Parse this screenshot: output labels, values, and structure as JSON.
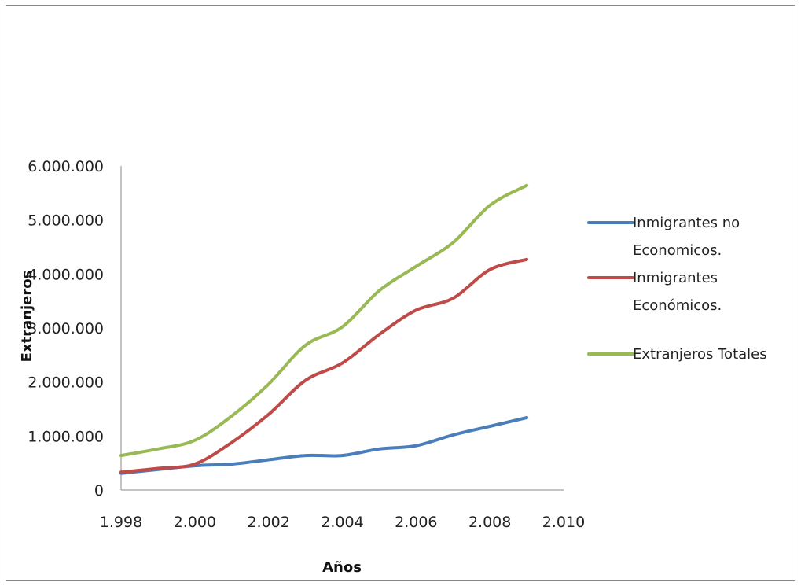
{
  "chart_data": {
    "type": "line",
    "xlabel": "Años",
    "ylabel": "Extranjeros",
    "xlim": [
      1998,
      2010
    ],
    "ylim": [
      0,
      6000000
    ],
    "x_ticks": [
      "1.998",
      "2.000",
      "2.002",
      "2.004",
      "2.006",
      "2.008",
      "2.010"
    ],
    "y_ticks": [
      "0",
      "1.000.000",
      "2.000.000",
      "3.000.000",
      "4.000.000",
      "5.000.000",
      "6.000.000"
    ],
    "x": [
      1998,
      1999,
      2000,
      2001,
      2002,
      2003,
      2004,
      2005,
      2006,
      2007,
      2008,
      2009
    ],
    "series": [
      {
        "name": [
          "Inmigrantes  no",
          "Economicos."
        ],
        "color": "#4a7ebb",
        "values": [
          310000,
          380000,
          450000,
          480000,
          560000,
          640000,
          640000,
          760000,
          820000,
          1020000,
          1180000,
          1340000
        ]
      },
      {
        "name": [
          "Inmigrantes",
          "Económicos."
        ],
        "color": "#be4b48",
        "values": [
          330000,
          400000,
          480000,
          880000,
          1400000,
          2030000,
          2350000,
          2880000,
          3330000,
          3550000,
          4080000,
          4270000
        ]
      },
      {
        "name": [
          "Extranjeros Totales"
        ],
        "color": "#98b954",
        "values": [
          640000,
          760000,
          920000,
          1370000,
          1960000,
          2680000,
          3020000,
          3690000,
          4140000,
          4580000,
          5270000,
          5640000
        ]
      }
    ],
    "legend_position": "right",
    "grid": false
  }
}
